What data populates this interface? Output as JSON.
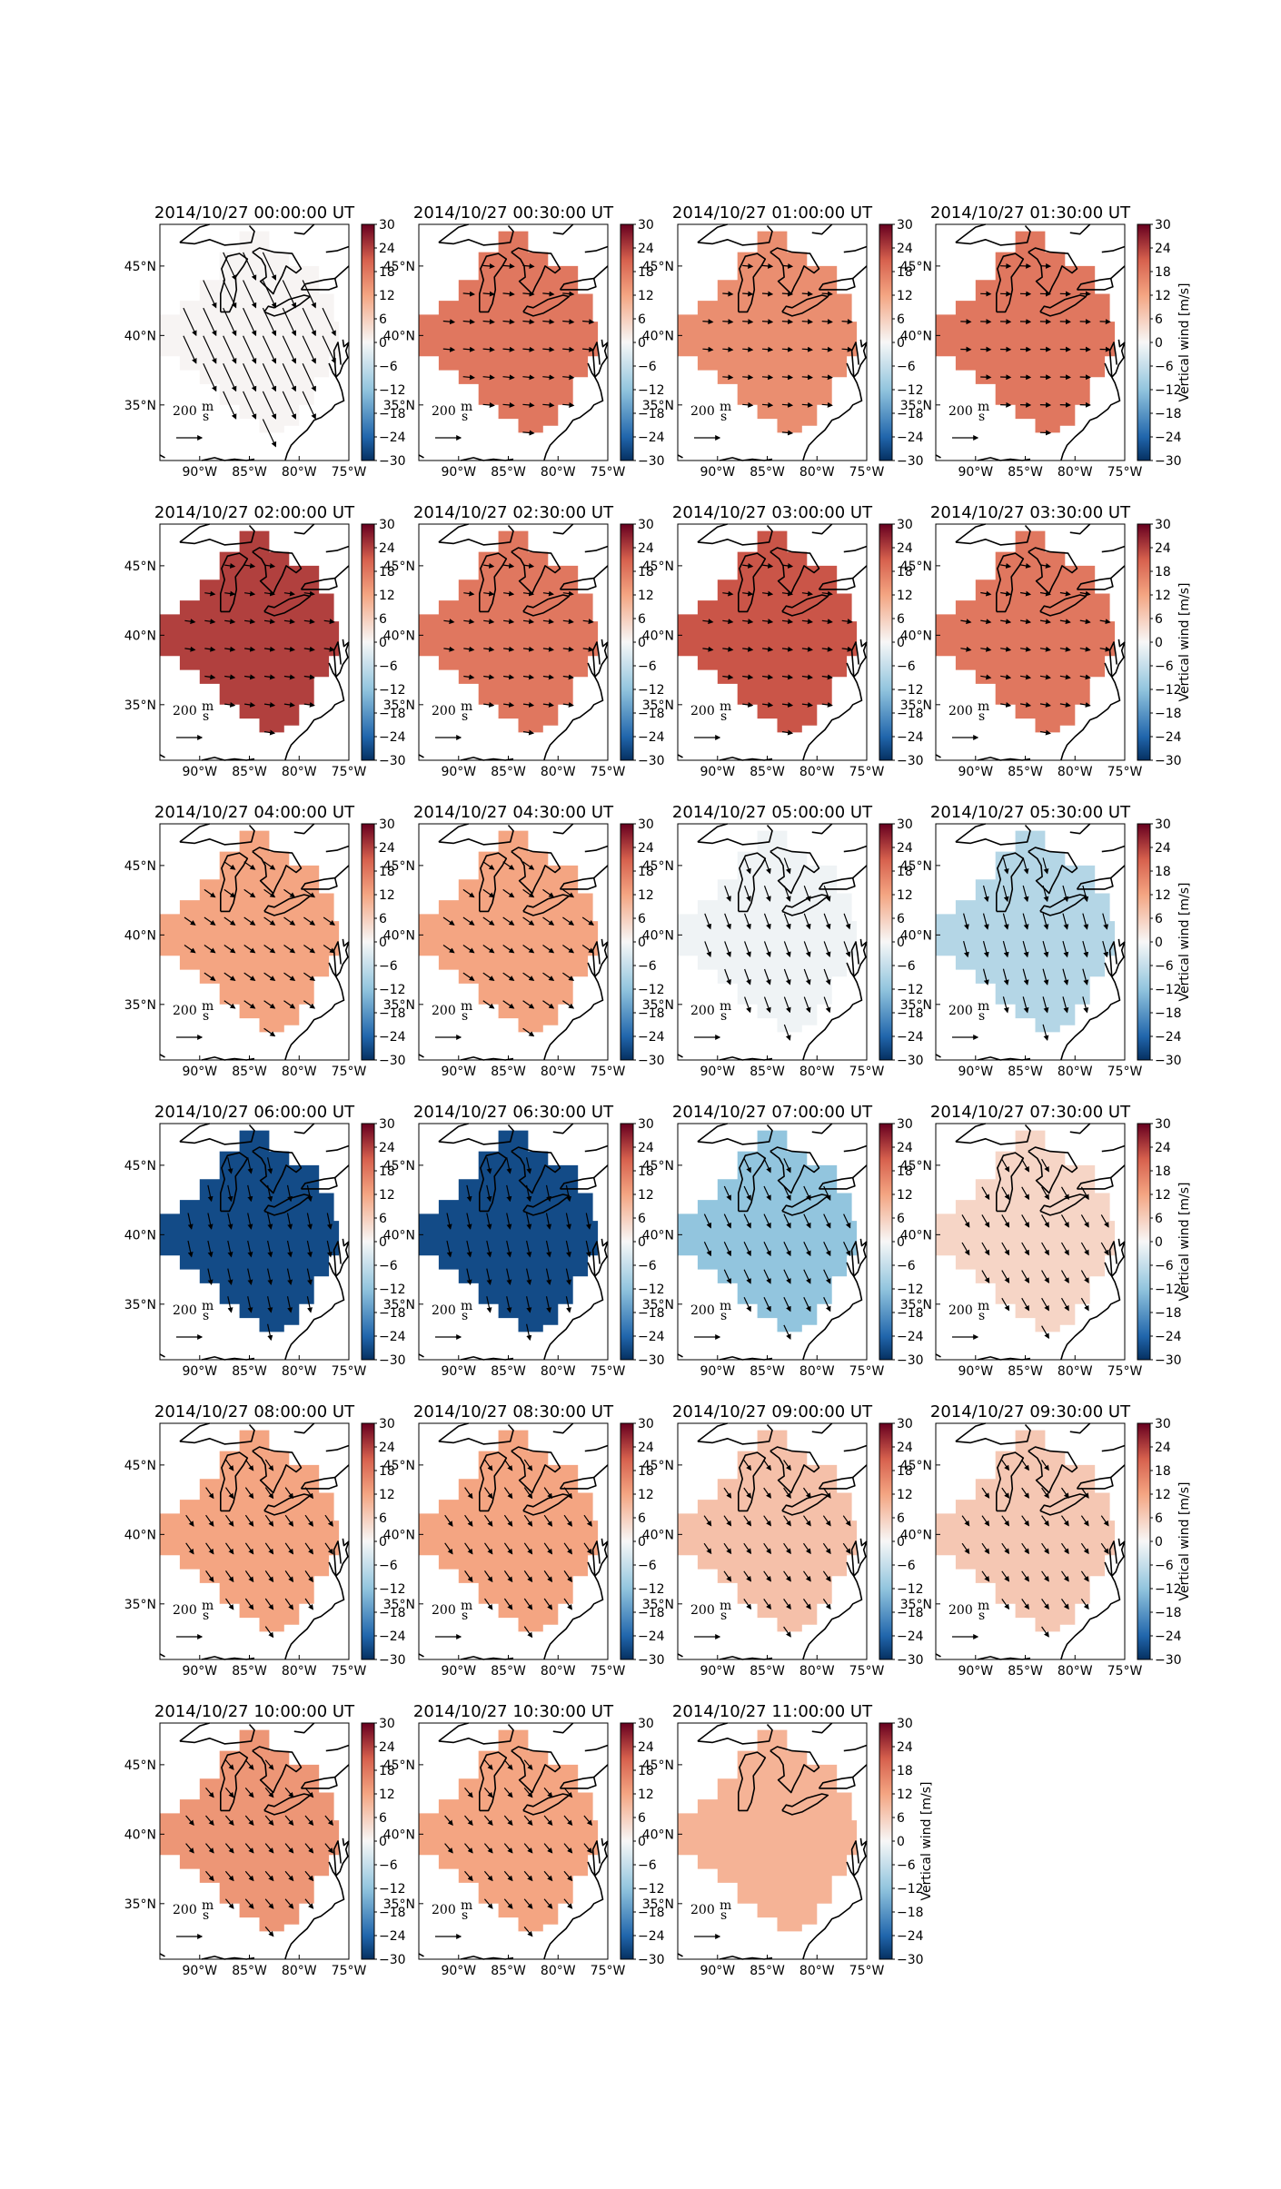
{
  "panels": [
    {
      "title": "2014/10/27 00:00:00 UT",
      "value": 0.4,
      "arrow": {
        "angle": 155,
        "len": 1.5
      }
    },
    {
      "title": "2014/10/27 00:30:00 UT",
      "value": 18,
      "arrow": {
        "angle": 95,
        "len": 0.55
      }
    },
    {
      "title": "2014/10/27 01:00:00 UT",
      "value": 15,
      "arrow": {
        "angle": 95,
        "len": 0.5
      }
    },
    {
      "title": "2014/10/27 01:30:00 UT",
      "value": 18,
      "arrow": {
        "angle": 92,
        "len": 0.5
      }
    },
    {
      "title": "2014/10/27 02:00:00 UT",
      "value": 24,
      "arrow": {
        "angle": 98,
        "len": 0.5
      }
    },
    {
      "title": "2014/10/27 02:30:00 UT",
      "value": 18,
      "arrow": {
        "angle": 98,
        "len": 0.5
      }
    },
    {
      "title": "2014/10/27 03:00:00 UT",
      "value": 22,
      "arrow": {
        "angle": 98,
        "len": 0.5
      }
    },
    {
      "title": "2014/10/27 03:30:00 UT",
      "value": 18,
      "arrow": {
        "angle": 100,
        "len": 0.5
      }
    },
    {
      "title": "2014/10/27 04:00:00 UT",
      "value": 12,
      "arrow": {
        "angle": 125,
        "len": 0.65
      }
    },
    {
      "title": "2014/10/27 04:30:00 UT",
      "value": 12,
      "arrow": {
        "angle": 125,
        "len": 0.65
      }
    },
    {
      "title": "2014/10/27 05:00:00 UT",
      "value": -1,
      "arrow": {
        "angle": 160,
        "len": 0.8
      }
    },
    {
      "title": "2014/10/27 05:30:00 UT",
      "value": -8,
      "arrow": {
        "angle": 165,
        "len": 0.8
      }
    },
    {
      "title": "2014/10/27 06:00:00 UT",
      "value": -27,
      "arrow": {
        "angle": 168,
        "len": 0.8
      }
    },
    {
      "title": "2014/10/27 06:30:00 UT",
      "value": -27,
      "arrow": {
        "angle": 168,
        "len": 0.8
      }
    },
    {
      "title": "2014/10/27 07:00:00 UT",
      "value": -12,
      "arrow": {
        "angle": 155,
        "len": 0.75
      }
    },
    {
      "title": "2014/10/27 07:30:00 UT",
      "value": 5,
      "arrow": {
        "angle": 150,
        "len": 0.7
      }
    },
    {
      "title": "2014/10/27 08:00:00 UT",
      "value": 12,
      "arrow": {
        "angle": 145,
        "len": 0.65
      }
    },
    {
      "title": "2014/10/27 08:30:00 UT",
      "value": 12,
      "arrow": {
        "angle": 145,
        "len": 0.65
      }
    },
    {
      "title": "2014/10/27 09:00:00 UT",
      "value": 8,
      "arrow": {
        "angle": 145,
        "len": 0.6
      }
    },
    {
      "title": "2014/10/27 09:30:00 UT",
      "value": 7,
      "arrow": {
        "angle": 145,
        "len": 0.6
      }
    },
    {
      "title": "2014/10/27 10:00:00 UT",
      "value": 14,
      "arrow": {
        "angle": 140,
        "len": 0.6
      }
    },
    {
      "title": "2014/10/27 10:30:00 UT",
      "value": 12,
      "arrow": {
        "angle": 140,
        "len": 0.6
      }
    },
    {
      "title": "2014/10/27 11:00:00 UT",
      "value": 10,
      "arrow": {
        "angle": 0,
        "len": 0
      }
    }
  ],
  "lon_ticks": [
    "90°W",
    "85°W",
    "80°W",
    "75°W"
  ],
  "lat_ticks": [
    "45°N",
    "40°N",
    "35°N"
  ],
  "colorbar": {
    "ticks": [
      "30",
      "24",
      "18",
      "12",
      "6",
      "0",
      "−6",
      "−12",
      "−18",
      "−24",
      "−30"
    ],
    "range": [
      -30,
      30
    ],
    "label": "Vertical wind [m/s]",
    "colors": {
      "min": "#053061",
      "low": "#2166ac",
      "lowmid": "#92c5de",
      "mid": "#f7f7f7",
      "highmid": "#f4a582",
      "high": "#d6604d",
      "max": "#67001f"
    }
  },
  "scale_label": "200",
  "scale_unit_num": "m",
  "scale_unit_den": "s"
}
